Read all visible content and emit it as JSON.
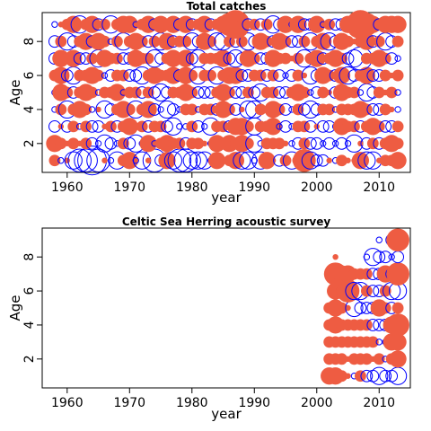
{
  "colors": {
    "positive": "#EE5C42",
    "negative": "#0000FF",
    "axis": "#000000"
  },
  "chart_data": [
    {
      "type": "scatter",
      "title": "Total catches",
      "xlabel": "year",
      "ylabel": "Age",
      "xlim": [
        1956,
        2015
      ],
      "ylim": [
        0.3,
        9.7
      ],
      "x_ticks": [
        1960,
        1970,
        1980,
        1990,
        2000,
        2010
      ],
      "y_ticks": [
        2,
        4,
        6,
        8
      ],
      "x_start": 1958,
      "x_end": 2013,
      "ages": [
        1,
        2,
        3,
        4,
        5,
        6,
        7,
        8,
        9
      ],
      "residuals": [
        [
          2,
          -1,
          1,
          -3,
          -4,
          -4,
          -5,
          -4,
          1,
          -1,
          -3,
          2,
          3,
          -1,
          -3,
          1,
          -4,
          -2,
          3,
          -3,
          -4,
          -4,
          -3,
          -3,
          -3,
          -1,
          3,
          1,
          2,
          3,
          -3,
          -3,
          -1,
          -3,
          3,
          1,
          -2,
          2,
          -3,
          2,
          4,
          -3,
          -2,
          -2,
          1,
          -1,
          2,
          1,
          1,
          3,
          -3,
          -3,
          1,
          2,
          2,
          3
        ],
        [
          3,
          2,
          1,
          2,
          1,
          2,
          -2,
          -1,
          -3,
          -2,
          -1,
          2,
          -2,
          -3,
          -1,
          3,
          -1,
          2,
          3,
          2,
          2,
          -2,
          2,
          2,
          1,
          -1,
          3,
          2,
          3,
          2,
          3,
          2,
          -3,
          -1,
          2,
          2,
          2,
          1,
          -1,
          -2,
          2,
          -2,
          -2,
          -1,
          -2,
          -1,
          -2,
          -1,
          -3,
          1,
          -2,
          2,
          -2,
          2,
          3,
          2
        ],
        [
          -2,
          1,
          -2,
          2,
          -1,
          2,
          -2,
          -2,
          1,
          2,
          -2,
          2,
          3,
          1,
          2,
          -2,
          2,
          2,
          -2,
          -3,
          -1,
          -1,
          2,
          -2,
          -1,
          -3,
          2,
          2,
          -2,
          3,
          3,
          2,
          -3,
          2,
          2,
          3,
          -1,
          -2,
          -1,
          2,
          2,
          -2,
          1,
          -2,
          -2,
          -1,
          3,
          2,
          2,
          -2,
          2,
          3,
          2,
          -2,
          -2,
          2
        ],
        [
          -1,
          2,
          -3,
          2,
          3,
          2,
          -1,
          1,
          -3,
          -2,
          2,
          3,
          2,
          -3,
          2,
          3,
          -2,
          -1,
          -3,
          -2,
          -1,
          2,
          2,
          -1,
          2,
          2,
          -2,
          3,
          2,
          -2,
          1,
          -3,
          -3,
          2,
          1,
          3,
          2,
          -2,
          -1,
          2,
          -2,
          -3,
          -2,
          2,
          2,
          -1,
          2,
          2,
          2,
          3,
          2,
          -2,
          -2,
          2,
          1,
          -1
        ],
        [
          -1,
          3,
          2,
          -2,
          2,
          3,
          2,
          -1,
          2,
          2,
          3,
          -1,
          2,
          2,
          -2,
          2,
          -2,
          -3,
          -2,
          2,
          2,
          3,
          2,
          -2,
          -2,
          -2,
          2,
          3,
          2,
          -2,
          -2,
          2,
          -2,
          -3,
          2,
          2,
          -2,
          -2,
          2,
          3,
          2,
          -1,
          -2,
          2,
          1,
          -2,
          3,
          2,
          2,
          -1,
          -3,
          -2,
          2,
          1,
          2,
          -1
        ],
        [
          2,
          3,
          -2,
          -3,
          2,
          2,
          3,
          2,
          -1,
          -2,
          2,
          2,
          -2,
          -2,
          -3,
          2,
          3,
          2,
          2,
          3,
          -2,
          3,
          2,
          -3,
          2,
          2,
          -3,
          2,
          3,
          3,
          -2,
          -2,
          2,
          2,
          -2,
          2,
          -2,
          -1,
          -2,
          2,
          1,
          -3,
          -2,
          3,
          2,
          -2,
          3,
          -3,
          -2,
          2,
          3,
          -2,
          -2,
          2,
          1,
          2
        ],
        [
          -2,
          3,
          2,
          3,
          -2,
          -2,
          2,
          -3,
          3,
          2,
          2,
          -2,
          -2,
          3,
          2,
          2,
          -3,
          -2,
          2,
          3,
          2,
          3,
          -2,
          -3,
          2,
          2,
          2,
          3,
          -2,
          -3,
          -2,
          3,
          2,
          -2,
          -2,
          3,
          2,
          2,
          1,
          2,
          -3,
          2,
          3,
          -2,
          2,
          3,
          2,
          -2,
          -3,
          -4,
          2,
          2,
          3,
          2,
          -2,
          -1
        ],
        [
          -2,
          2,
          -3,
          -2,
          2,
          3,
          -2,
          3,
          2,
          -1,
          2,
          -3,
          2,
          3,
          2,
          -2,
          2,
          -3,
          3,
          -2,
          2,
          2,
          -3,
          -2,
          3,
          2,
          -3,
          -3,
          2,
          -2,
          2,
          -3,
          -2,
          3,
          2,
          -2,
          3,
          2,
          -2,
          -2,
          2,
          -3,
          2,
          3,
          -3,
          -2,
          3,
          2,
          1,
          2,
          3,
          -2,
          2,
          -3,
          -2,
          2
        ],
        [
          -1,
          1,
          2,
          3,
          -3,
          2,
          3,
          -2,
          2,
          -3,
          2,
          3,
          3,
          -1,
          2,
          3,
          -2,
          3,
          2,
          3,
          -2,
          3,
          -2,
          2,
          3,
          -2,
          2,
          3,
          4,
          5,
          2,
          -2,
          2,
          -2,
          2,
          -3,
          -2,
          3,
          -1,
          3,
          -2,
          -2,
          3,
          -1,
          2,
          -2,
          -2,
          3,
          -1,
          5,
          4,
          3,
          -2,
          3,
          3,
          3
        ]
      ]
    },
    {
      "type": "scatter",
      "title": "Celtic Sea Herring acoustic survey",
      "xlabel": "year",
      "ylabel": "Age",
      "xlim": [
        1956,
        2015
      ],
      "ylim": [
        0.3,
        9.7
      ],
      "x_ticks": [
        1960,
        1970,
        1980,
        1990,
        2000,
        2010
      ],
      "y_ticks": [
        2,
        4,
        6,
        8
      ],
      "x_start": 2002,
      "x_end": 2013,
      "ages": [
        1,
        2,
        3,
        4,
        5,
        6,
        7,
        8,
        9
      ],
      "residuals": [
        [
          3,
          3,
          2,
          1,
          -1,
          2,
          -2,
          -2,
          -3,
          -2,
          -2,
          -3
        ],
        [
          2,
          2,
          2,
          1,
          2,
          2,
          2,
          1,
          2,
          -1,
          2,
          3
        ],
        [
          2,
          2,
          2,
          2,
          2,
          2,
          2,
          2,
          -1,
          -1,
          3,
          3
        ],
        [
          2,
          3,
          2,
          2,
          2,
          2,
          2,
          -2,
          -2,
          -2,
          3,
          4
        ],
        [
          2,
          3,
          2,
          1,
          -3,
          -2,
          -2,
          -2,
          3,
          2,
          -2,
          2
        ],
        [
          0,
          3,
          2,
          4,
          -3,
          -3,
          2,
          -2,
          -2,
          2,
          -3,
          -3
        ],
        [
          0,
          4,
          3,
          3,
          2,
          2,
          2,
          -2,
          -2,
          3,
          -2,
          4
        ],
        [
          0,
          1,
          0,
          0,
          0,
          0,
          -1,
          -3,
          -2,
          -2,
          -1,
          -2
        ],
        [
          0,
          0,
          0,
          0,
          0,
          0,
          0,
          0,
          -1,
          0,
          -2,
          4
        ]
      ]
    }
  ]
}
